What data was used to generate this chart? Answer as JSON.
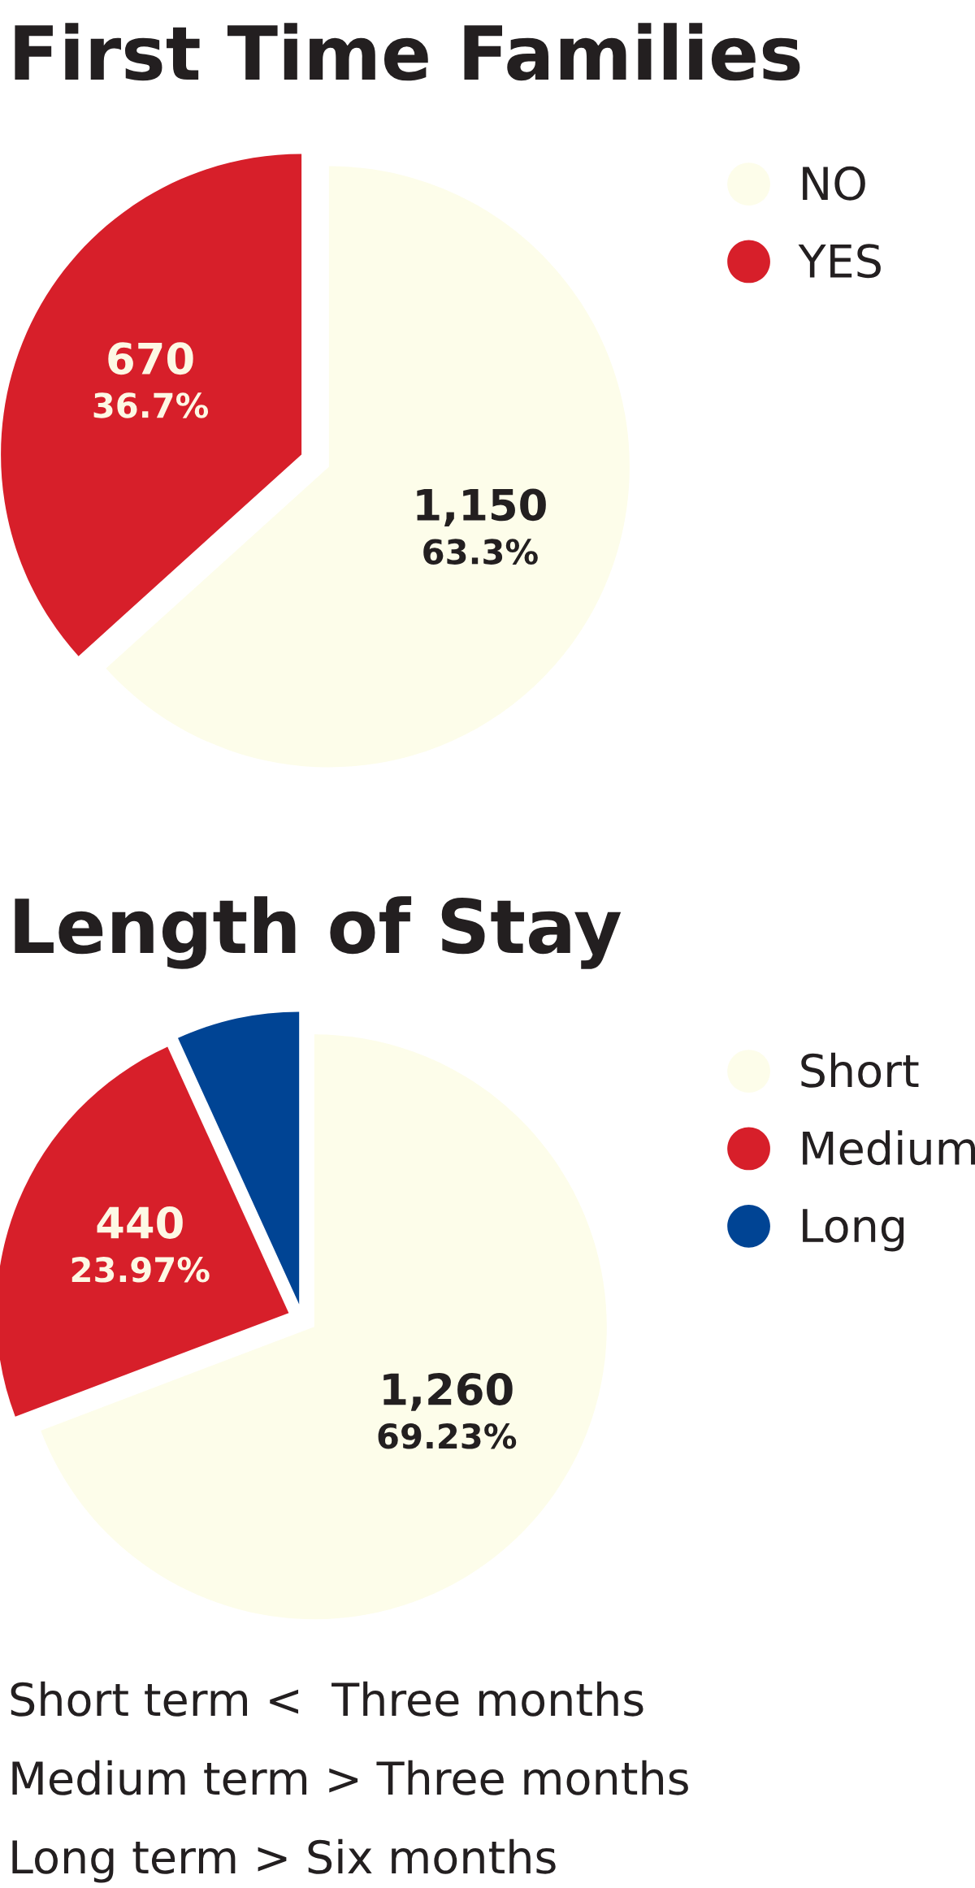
{
  "chart_data": [
    {
      "type": "pie",
      "title": "First Time Families",
      "categories": [
        "NO",
        "YES"
      ],
      "values": [
        63.3,
        36.7
      ],
      "colors": [
        "#fdfdea",
        "#d71f2a"
      ],
      "value_labels": [
        "1,150\n63.3%",
        "670\n36.7%"
      ],
      "legend": "right"
    },
    {
      "type": "pie",
      "title": "Length of Stay",
      "categories": [
        "Short",
        "Medium",
        "Long"
      ],
      "values": [
        69.23,
        23.97,
        6.8
      ],
      "colors": [
        "#fdfdea",
        "#d71f2a",
        "#004494"
      ],
      "value_labels": [
        "1,260\n69.23%",
        "440\n23.97%",
        null
      ],
      "legend": "right",
      "annotations": [
        "Short term <  Three months",
        "Medium term > Three months",
        "Long term > Six months"
      ]
    }
  ]
}
